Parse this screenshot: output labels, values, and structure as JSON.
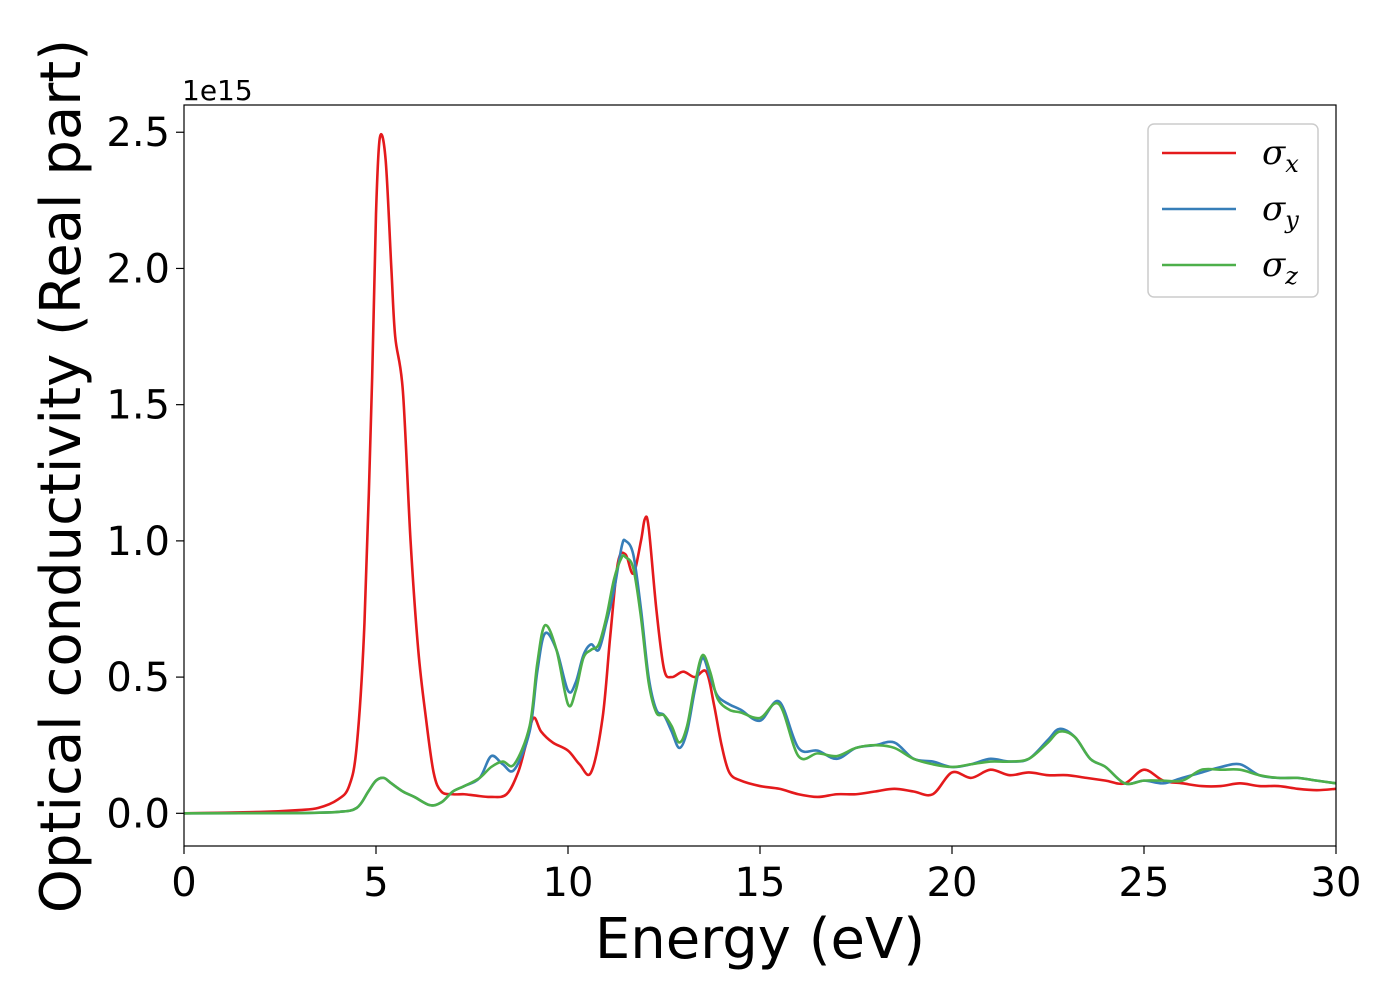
{
  "chart_data": {
    "type": "line",
    "xlabel": "Energy (eV)",
    "ylabel": "Optical conductivity (Real part)",
    "y_offset_label": "1e15",
    "xlim": [
      0,
      30
    ],
    "ylim": [
      -0.12,
      2.6
    ],
    "x_ticks": [
      0,
      5,
      10,
      15,
      20,
      25,
      30
    ],
    "x_tick_labels": [
      "0",
      "5",
      "10",
      "15",
      "20",
      "25",
      "30"
    ],
    "y_ticks": [
      0.0,
      0.5,
      1.0,
      1.5,
      2.0,
      2.5
    ],
    "y_tick_labels": [
      "0.0",
      "0.5",
      "1.0",
      "1.5",
      "2.0",
      "2.5"
    ],
    "grid": false,
    "legend_position": "top-right",
    "series": [
      {
        "name": "σx",
        "symbol": "σ",
        "subscript": "x",
        "color": "#e41a1c",
        "x": [
          0,
          2,
          3,
          3.5,
          4,
          4.3,
          4.5,
          4.7,
          4.9,
          5.0,
          5.1,
          5.25,
          5.4,
          5.5,
          5.7,
          5.9,
          6.1,
          6.3,
          6.5,
          6.7,
          7.0,
          7.3,
          7.6,
          8.0,
          8.4,
          8.7,
          8.9,
          9.1,
          9.3,
          9.6,
          10.0,
          10.3,
          10.6,
          10.9,
          11.1,
          11.3,
          11.5,
          11.7,
          11.9,
          12.0,
          12.1,
          12.3,
          12.5,
          12.7,
          13.0,
          13.3,
          13.6,
          13.8,
          14.0,
          14.2,
          14.5,
          15.0,
          15.5,
          16.0,
          16.5,
          17.0,
          17.5,
          18.0,
          18.5,
          19.0,
          19.5,
          20.0,
          20.5,
          21.0,
          21.5,
          22.0,
          22.5,
          23.0,
          23.5,
          24.0,
          24.5,
          25.0,
          25.5,
          26.0,
          26.5,
          27.0,
          27.5,
          28.0,
          28.5,
          29.0,
          29.5,
          30.0
        ],
        "y": [
          0,
          0.005,
          0.012,
          0.02,
          0.05,
          0.1,
          0.25,
          0.7,
          1.6,
          2.2,
          2.48,
          2.4,
          2.0,
          1.75,
          1.55,
          1.0,
          0.6,
          0.35,
          0.15,
          0.08,
          0.07,
          0.07,
          0.065,
          0.06,
          0.07,
          0.15,
          0.25,
          0.35,
          0.3,
          0.26,
          0.23,
          0.18,
          0.15,
          0.35,
          0.65,
          0.92,
          0.95,
          0.88,
          1.0,
          1.08,
          1.05,
          0.75,
          0.53,
          0.5,
          0.52,
          0.5,
          0.52,
          0.4,
          0.25,
          0.15,
          0.12,
          0.1,
          0.09,
          0.07,
          0.06,
          0.07,
          0.07,
          0.08,
          0.09,
          0.08,
          0.07,
          0.15,
          0.13,
          0.16,
          0.14,
          0.15,
          0.14,
          0.14,
          0.13,
          0.12,
          0.11,
          0.16,
          0.12,
          0.11,
          0.1,
          0.1,
          0.11,
          0.1,
          0.1,
          0.09,
          0.085,
          0.09
        ]
      },
      {
        "name": "σy",
        "symbol": "σ",
        "subscript": "y",
        "color": "#377eb8",
        "x": [
          0,
          3,
          4.0,
          4.5,
          4.8,
          5.0,
          5.2,
          5.4,
          5.7,
          6.0,
          6.4,
          6.7,
          7.0,
          7.3,
          7.7,
          8.0,
          8.3,
          8.6,
          9.0,
          9.2,
          9.4,
          9.7,
          10.0,
          10.2,
          10.4,
          10.6,
          10.8,
          11.0,
          11.2,
          11.4,
          11.5,
          11.7,
          11.9,
          12.1,
          12.3,
          12.5,
          12.7,
          12.9,
          13.1,
          13.3,
          13.5,
          13.7,
          13.9,
          14.2,
          14.5,
          15.0,
          15.5,
          16.0,
          16.5,
          17.0,
          17.5,
          18.0,
          18.5,
          19.0,
          19.5,
          20.0,
          20.5,
          21.0,
          21.5,
          22.0,
          22.5,
          22.8,
          23.2,
          23.6,
          24.0,
          24.5,
          25.0,
          25.5,
          26.0,
          26.5,
          27.0,
          27.5,
          28.0,
          28.5,
          29.0,
          29.5,
          30.0
        ],
        "y": [
          0,
          0.001,
          0.005,
          0.02,
          0.08,
          0.12,
          0.13,
          0.11,
          0.08,
          0.06,
          0.03,
          0.04,
          0.08,
          0.1,
          0.13,
          0.21,
          0.18,
          0.16,
          0.3,
          0.52,
          0.66,
          0.6,
          0.45,
          0.48,
          0.58,
          0.62,
          0.6,
          0.7,
          0.82,
          0.98,
          1.0,
          0.95,
          0.75,
          0.5,
          0.38,
          0.36,
          0.3,
          0.24,
          0.3,
          0.45,
          0.57,
          0.5,
          0.43,
          0.4,
          0.38,
          0.34,
          0.41,
          0.24,
          0.23,
          0.2,
          0.24,
          0.25,
          0.26,
          0.2,
          0.19,
          0.17,
          0.18,
          0.2,
          0.19,
          0.2,
          0.27,
          0.31,
          0.28,
          0.2,
          0.17,
          0.11,
          0.12,
          0.11,
          0.13,
          0.15,
          0.17,
          0.18,
          0.14,
          0.13,
          0.13,
          0.12,
          0.11
        ]
      },
      {
        "name": "σz",
        "symbol": "σ",
        "subscript": "z",
        "color": "#4daf4a",
        "x": [
          0,
          3,
          4.0,
          4.5,
          4.8,
          5.0,
          5.2,
          5.4,
          5.7,
          6.0,
          6.4,
          6.7,
          7.0,
          7.3,
          7.7,
          8.0,
          8.3,
          8.6,
          9.0,
          9.2,
          9.4,
          9.7,
          10.0,
          10.2,
          10.4,
          10.6,
          10.8,
          11.0,
          11.2,
          11.4,
          11.5,
          11.7,
          11.9,
          12.1,
          12.3,
          12.5,
          12.7,
          12.9,
          13.1,
          13.3,
          13.5,
          13.7,
          13.9,
          14.2,
          14.5,
          15.0,
          15.5,
          16.0,
          16.5,
          17.0,
          17.5,
          18.0,
          18.5,
          19.0,
          19.5,
          20.0,
          20.5,
          21.0,
          21.5,
          22.0,
          22.5,
          22.8,
          23.2,
          23.6,
          24.0,
          24.5,
          25.0,
          25.5,
          26.0,
          26.5,
          27.0,
          27.5,
          28.0,
          28.5,
          29.0,
          29.5,
          30.0
        ],
        "y": [
          0,
          0.001,
          0.005,
          0.02,
          0.08,
          0.12,
          0.13,
          0.11,
          0.08,
          0.06,
          0.03,
          0.04,
          0.08,
          0.1,
          0.13,
          0.17,
          0.19,
          0.18,
          0.32,
          0.55,
          0.69,
          0.6,
          0.4,
          0.45,
          0.57,
          0.6,
          0.62,
          0.72,
          0.86,
          0.94,
          0.94,
          0.9,
          0.72,
          0.48,
          0.37,
          0.36,
          0.32,
          0.26,
          0.32,
          0.47,
          0.58,
          0.52,
          0.42,
          0.38,
          0.37,
          0.35,
          0.4,
          0.21,
          0.22,
          0.21,
          0.24,
          0.25,
          0.24,
          0.2,
          0.18,
          0.17,
          0.18,
          0.19,
          0.19,
          0.2,
          0.26,
          0.3,
          0.28,
          0.2,
          0.17,
          0.11,
          0.12,
          0.12,
          0.12,
          0.16,
          0.16,
          0.16,
          0.14,
          0.13,
          0.13,
          0.12,
          0.11
        ]
      }
    ]
  }
}
